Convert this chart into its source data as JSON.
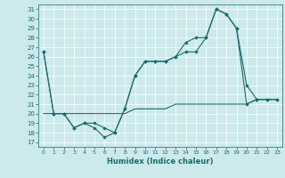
{
  "xlabel": "Humidex (Indice chaleur)",
  "bg_color": "#cce9ec",
  "line_color": "#1a6b6b",
  "xlim": [
    -0.5,
    23.5
  ],
  "ylim": [
    16.5,
    31.5
  ],
  "yticks": [
    17,
    18,
    19,
    20,
    21,
    22,
    23,
    24,
    25,
    26,
    27,
    28,
    29,
    30,
    31
  ],
  "xticks": [
    0,
    1,
    2,
    3,
    4,
    5,
    6,
    7,
    8,
    9,
    10,
    11,
    12,
    13,
    14,
    15,
    16,
    17,
    18,
    19,
    20,
    21,
    22,
    23
  ],
  "series1": [
    [
      0,
      26.5
    ],
    [
      1,
      20.0
    ],
    [
      2,
      20.0
    ],
    [
      3,
      18.5
    ],
    [
      4,
      19.0
    ],
    [
      5,
      19.0
    ],
    [
      6,
      18.5
    ],
    [
      7,
      18.0
    ],
    [
      8,
      20.5
    ],
    [
      9,
      24.0
    ],
    [
      10,
      25.5
    ],
    [
      11,
      25.5
    ],
    [
      12,
      25.5
    ],
    [
      13,
      26.0
    ],
    [
      14,
      27.5
    ],
    [
      15,
      28.0
    ],
    [
      16,
      28.0
    ],
    [
      17,
      31.0
    ],
    [
      18,
      30.5
    ],
    [
      19,
      29.0
    ],
    [
      20,
      21.0
    ],
    [
      21,
      21.5
    ],
    [
      22,
      21.5
    ],
    [
      23,
      21.5
    ]
  ],
  "series2": [
    [
      0,
      26.5
    ],
    [
      1,
      20.0
    ],
    [
      2,
      20.0
    ],
    [
      3,
      18.5
    ],
    [
      4,
      19.0
    ],
    [
      5,
      18.5
    ],
    [
      6,
      17.5
    ],
    [
      7,
      18.0
    ],
    [
      8,
      20.5
    ],
    [
      9,
      24.0
    ],
    [
      10,
      25.5
    ],
    [
      11,
      25.5
    ],
    [
      12,
      25.5
    ],
    [
      13,
      26.0
    ],
    [
      14,
      26.5
    ],
    [
      15,
      26.5
    ],
    [
      16,
      28.0
    ],
    [
      17,
      31.0
    ],
    [
      18,
      30.5
    ],
    [
      19,
      29.0
    ],
    [
      20,
      23.0
    ],
    [
      21,
      21.5
    ],
    [
      22,
      21.5
    ],
    [
      23,
      21.5
    ]
  ],
  "series3": [
    [
      0,
      20.0
    ],
    [
      1,
      20.0
    ],
    [
      2,
      20.0
    ],
    [
      3,
      20.0
    ],
    [
      4,
      20.0
    ],
    [
      5,
      20.0
    ],
    [
      6,
      20.0
    ],
    [
      7,
      20.0
    ],
    [
      8,
      20.0
    ],
    [
      9,
      20.5
    ],
    [
      10,
      20.5
    ],
    [
      11,
      20.5
    ],
    [
      12,
      20.5
    ],
    [
      13,
      21.0
    ],
    [
      14,
      21.0
    ],
    [
      15,
      21.0
    ],
    [
      16,
      21.0
    ],
    [
      17,
      21.0
    ],
    [
      18,
      21.0
    ],
    [
      19,
      21.0
    ],
    [
      20,
      21.0
    ],
    [
      21,
      21.5
    ],
    [
      22,
      21.5
    ],
    [
      23,
      21.5
    ]
  ]
}
